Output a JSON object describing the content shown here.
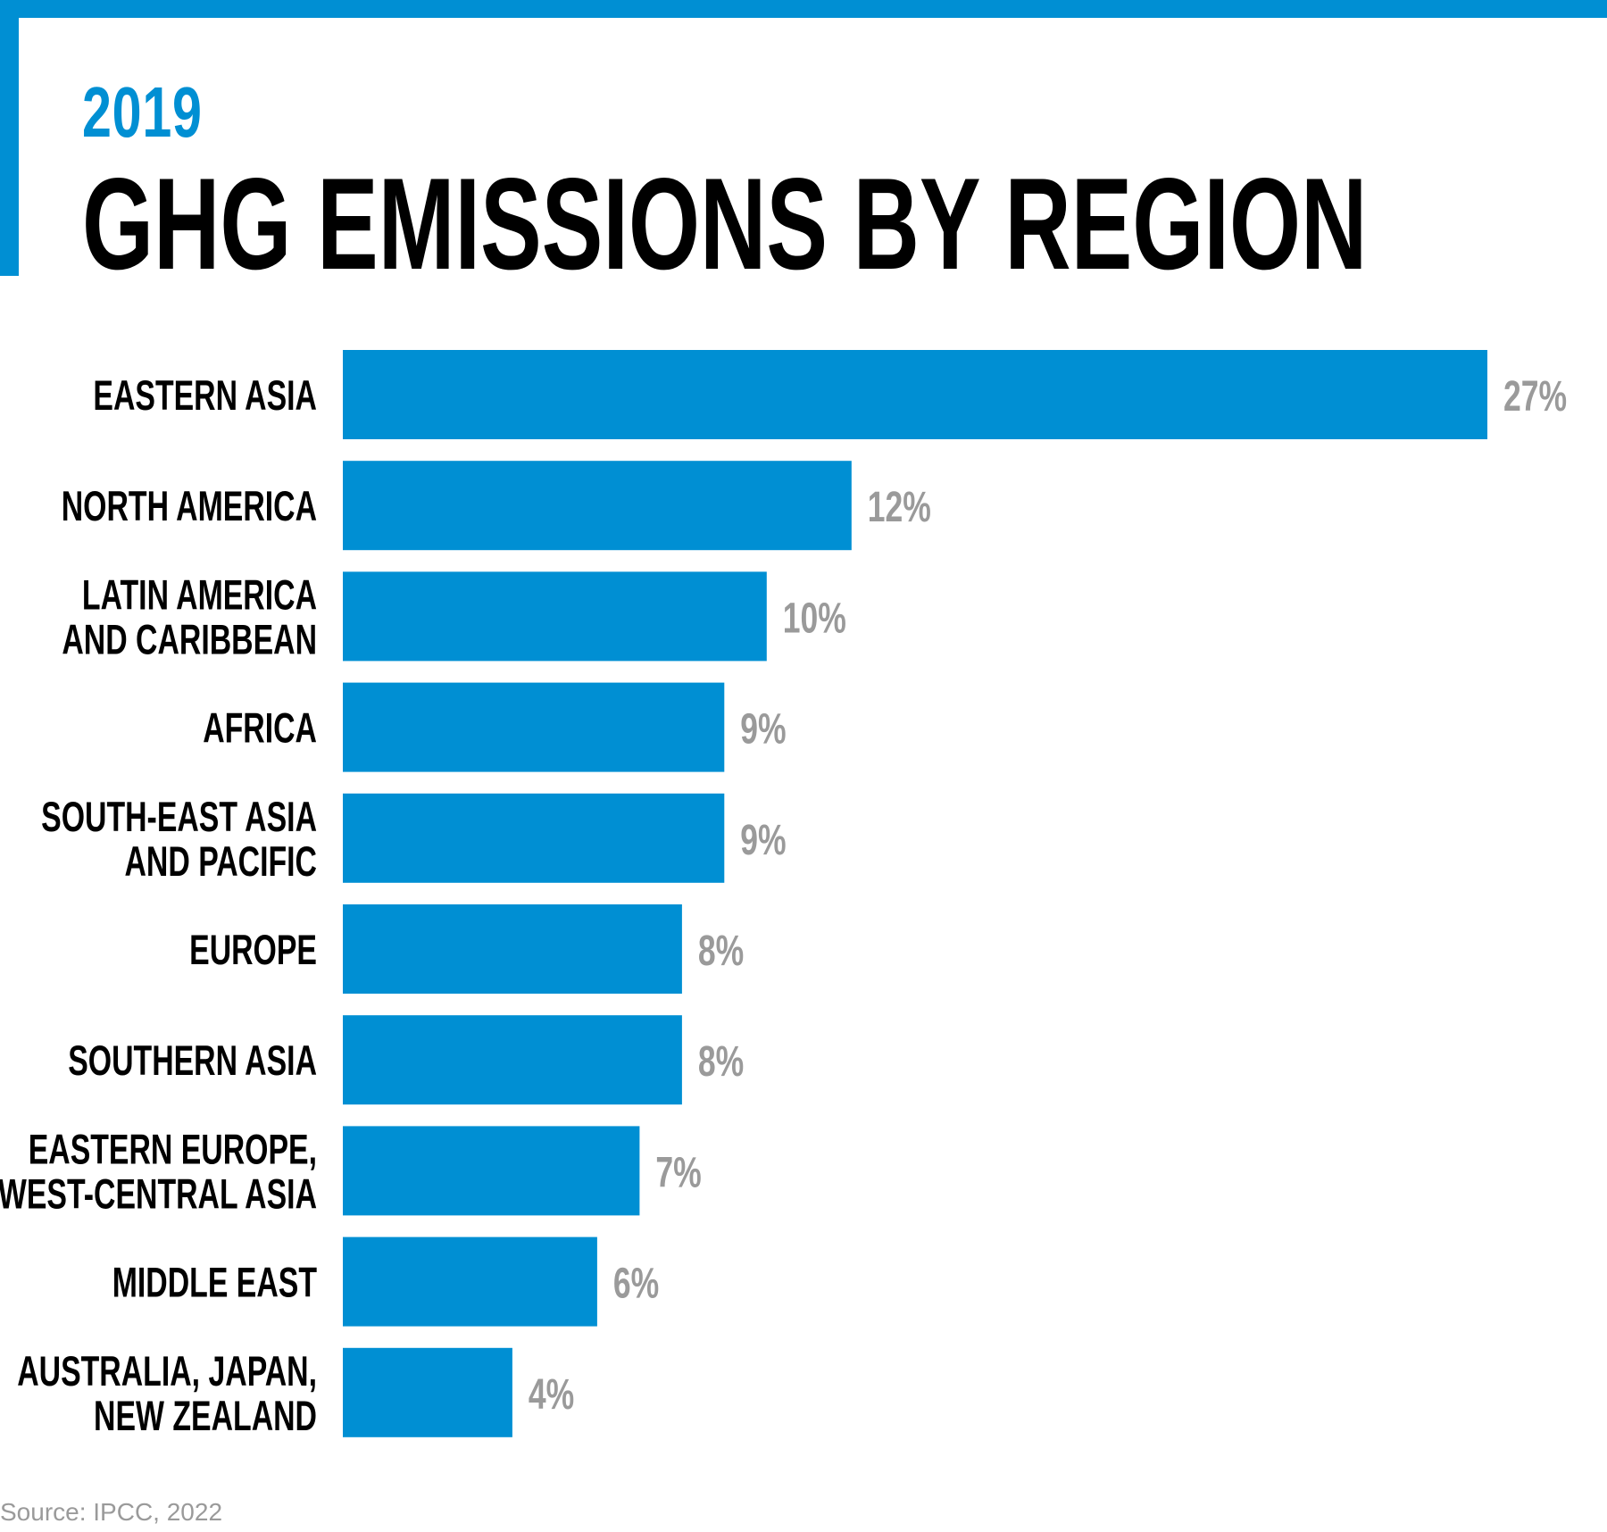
{
  "header": {
    "year": "2019",
    "title": "GHG EMISSIONS BY REGION"
  },
  "colors": {
    "accent": "#008fd3",
    "value_label": "#9a9a9a",
    "label": "#000000"
  },
  "chart_data": {
    "type": "bar",
    "orientation": "horizontal",
    "title": "GHG EMISSIONS BY REGION",
    "subtitle": "2019",
    "xlabel": "",
    "ylabel": "",
    "xlim": [
      0,
      27
    ],
    "grid": false,
    "legend": "none",
    "categories": [
      [
        "EASTERN ASIA"
      ],
      [
        "NORTH AMERICA"
      ],
      [
        "LATIN AMERICA",
        "AND CARIBBEAN"
      ],
      [
        "AFRICA"
      ],
      [
        "SOUTH-EAST ASIA",
        "AND PACIFIC"
      ],
      [
        "EUROPE"
      ],
      [
        "SOUTHERN ASIA"
      ],
      [
        "EASTERN EUROPE,",
        "WEST-CENTRAL ASIA"
      ],
      [
        "MIDDLE EAST"
      ],
      [
        "AUSTRALIA, JAPAN,",
        "NEW ZEALAND"
      ]
    ],
    "values": [
      27,
      12,
      10,
      9,
      9,
      8,
      8,
      7,
      6,
      4
    ],
    "value_labels": [
      "27%",
      "12%",
      "10%",
      "9%",
      "9%",
      "8%",
      "8%",
      "7%",
      "6%",
      "4%"
    ]
  },
  "footer": {
    "source": "Source: IPCC, 2022"
  }
}
